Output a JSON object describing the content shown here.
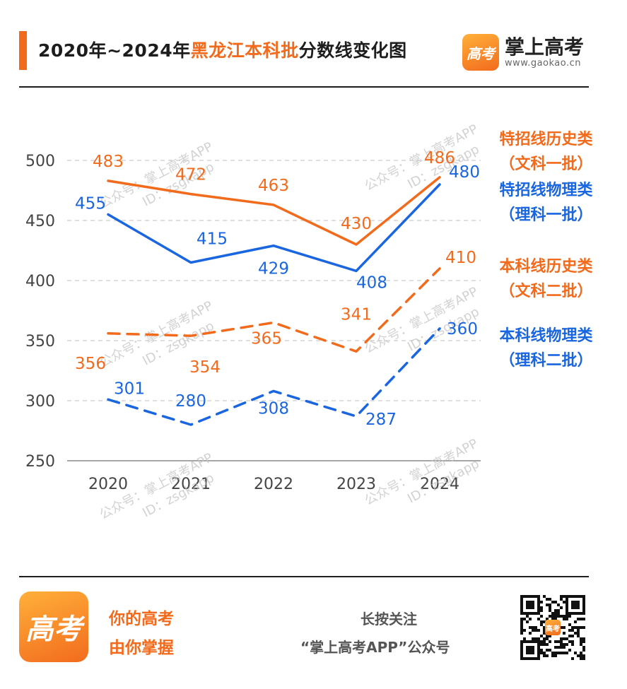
{
  "header": {
    "title_prefix": "2020年~2024年",
    "title_highlight": "黑龙江本科批",
    "title_suffix": "分数线变化图",
    "brand_logo_text": "高考",
    "brand_name": "掌上高考",
    "brand_url": "www.gaokao.cn"
  },
  "watermark": {
    "line1": "公众号：掌上高考APP",
    "line2": "ID：zsgkapp"
  },
  "footer": {
    "logo_text": "高考",
    "slogan_line1": "你的高考",
    "slogan_line2": "由你掌握",
    "follow_line1": "长按关注",
    "follow_line2": "“掌上高考APP”公众号"
  },
  "colors": {
    "orange": "#f26b1d",
    "blue": "#1a66e0",
    "grid": "#cccccc",
    "axis_text": "#444444"
  },
  "chart_data": {
    "type": "line",
    "title": "2020年~2024年黑龙江本科批分数线变化图",
    "x": [
      "2020",
      "2021",
      "2022",
      "2023",
      "2024"
    ],
    "ylim": [
      250,
      500
    ],
    "yticks": [
      250,
      300,
      350,
      400,
      450,
      500
    ],
    "grid": true,
    "legend_position": "right",
    "series": [
      {
        "name": "特招线历史类",
        "name_sub": "（文科一批）",
        "color": "#f26b1d",
        "style": "solid",
        "values": [
          483,
          472,
          463,
          430,
          486
        ],
        "labels": [
          "483",
          "472",
          "463",
          "430",
          "486"
        ]
      },
      {
        "name": "特招线物理类",
        "name_sub": "（理科一批）",
        "color": "#1a66e0",
        "style": "solid",
        "values": [
          455,
          415,
          429,
          408,
          480
        ],
        "labels": [
          "455",
          "415",
          "429",
          "408",
          "480"
        ]
      },
      {
        "name": "本科线历史类",
        "name_sub": "（文科二批）",
        "color": "#f26b1d",
        "style": "dashed",
        "values": [
          356,
          354,
          365,
          341,
          410
        ],
        "labels": [
          "356",
          "354",
          "365",
          "341",
          "410"
        ]
      },
      {
        "name": "本科线物理类",
        "name_sub": "（理科二批）",
        "color": "#1a66e0",
        "style": "dashed",
        "values": [
          301,
          280,
          308,
          287,
          360
        ],
        "labels": [
          "301",
          "280",
          "308",
          "287",
          "360"
        ]
      }
    ]
  }
}
